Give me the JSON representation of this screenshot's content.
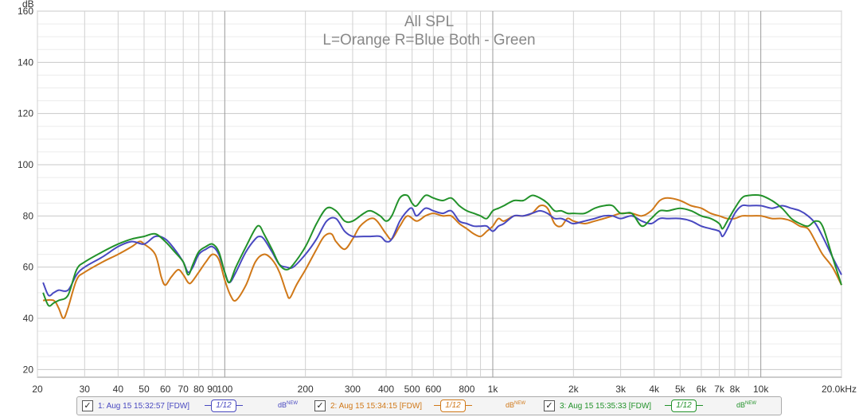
{
  "chart_data": {
    "type": "line",
    "title": "All SPL",
    "subtitle": "L=Orange  R=Blue  Both - Green",
    "ylabel": "dB",
    "xlabel": "",
    "x_scale": "log",
    "xlim": [
      20,
      20000
    ],
    "ylim": [
      17,
      160
    ],
    "grid": true,
    "yticks": [
      20,
      40,
      60,
      80,
      100,
      120,
      140,
      160
    ],
    "xtick_labels": [
      {
        "f": 20,
        "label": "20"
      },
      {
        "f": 30,
        "label": "30"
      },
      {
        "f": 40,
        "label": "40"
      },
      {
        "f": 50,
        "label": "50"
      },
      {
        "f": 60,
        "label": "60"
      },
      {
        "f": 70,
        "label": "70"
      },
      {
        "f": 80,
        "label": "80"
      },
      {
        "f": 90,
        "label": "90"
      },
      {
        "f": 100,
        "label": "100"
      },
      {
        "f": 200,
        "label": "200"
      },
      {
        "f": 300,
        "label": "300"
      },
      {
        "f": 400,
        "label": "400"
      },
      {
        "f": 500,
        "label": "500"
      },
      {
        "f": 600,
        "label": "600"
      },
      {
        "f": 800,
        "label": "800"
      },
      {
        "f": 1000,
        "label": "1k"
      },
      {
        "f": 2000,
        "label": "2k"
      },
      {
        "f": 3000,
        "label": "3k"
      },
      {
        "f": 4000,
        "label": "4k"
      },
      {
        "f": 5000,
        "label": "5k"
      },
      {
        "f": 6000,
        "label": "6k"
      },
      {
        "f": 7000,
        "label": "7k"
      },
      {
        "f": 8000,
        "label": "8k"
      },
      {
        "f": 10000,
        "label": "10k"
      },
      {
        "f": 20000,
        "label": "20.0kHz"
      }
    ],
    "series": [
      {
        "color": "#d07818",
        "points": [
          [
            21,
            47
          ],
          [
            23,
            47
          ],
          [
            24,
            44
          ],
          [
            25,
            40
          ],
          [
            26,
            44
          ],
          [
            28,
            55
          ],
          [
            30,
            58
          ],
          [
            35,
            62
          ],
          [
            40,
            65
          ],
          [
            45,
            68
          ],
          [
            48,
            70
          ],
          [
            50,
            69
          ],
          [
            55,
            65
          ],
          [
            58,
            56
          ],
          [
            60,
            53
          ],
          [
            63,
            56
          ],
          [
            67,
            59
          ],
          [
            70,
            57
          ],
          [
            73,
            54
          ],
          [
            75,
            54
          ],
          [
            80,
            58
          ],
          [
            85,
            62
          ],
          [
            90,
            65
          ],
          [
            95,
            63
          ],
          [
            100,
            55
          ],
          [
            105,
            49
          ],
          [
            110,
            47
          ],
          [
            120,
            53
          ],
          [
            130,
            62
          ],
          [
            140,
            65
          ],
          [
            150,
            63
          ],
          [
            160,
            58
          ],
          [
            170,
            50
          ],
          [
            175,
            48
          ],
          [
            185,
            53
          ],
          [
            200,
            59
          ],
          [
            220,
            67
          ],
          [
            235,
            72
          ],
          [
            250,
            73
          ],
          [
            260,
            70
          ],
          [
            280,
            67
          ],
          [
            300,
            71
          ],
          [
            320,
            76
          ],
          [
            350,
            79
          ],
          [
            370,
            78
          ],
          [
            400,
            73
          ],
          [
            420,
            71
          ],
          [
            450,
            76
          ],
          [
            480,
            80
          ],
          [
            520,
            78
          ],
          [
            560,
            80
          ],
          [
            600,
            81
          ],
          [
            650,
            80
          ],
          [
            700,
            80
          ],
          [
            750,
            77
          ],
          [
            800,
            75
          ],
          [
            850,
            73
          ],
          [
            900,
            72
          ],
          [
            950,
            74
          ],
          [
            1000,
            76
          ],
          [
            1050,
            79
          ],
          [
            1100,
            78
          ],
          [
            1200,
            80
          ],
          [
            1300,
            80
          ],
          [
            1400,
            81
          ],
          [
            1500,
            84
          ],
          [
            1600,
            83
          ],
          [
            1700,
            77
          ],
          [
            1800,
            76
          ],
          [
            1900,
            79
          ],
          [
            2000,
            78
          ],
          [
            2200,
            77
          ],
          [
            2400,
            78
          ],
          [
            2600,
            79
          ],
          [
            2800,
            80
          ],
          [
            3000,
            81
          ],
          [
            3300,
            81
          ],
          [
            3600,
            80
          ],
          [
            3900,
            82
          ],
          [
            4200,
            86
          ],
          [
            4500,
            87
          ],
          [
            5000,
            86
          ],
          [
            5500,
            84
          ],
          [
            6000,
            83
          ],
          [
            6500,
            81
          ],
          [
            7000,
            80
          ],
          [
            7500,
            79
          ],
          [
            8000,
            79
          ],
          [
            8500,
            80
          ],
          [
            9000,
            80
          ],
          [
            10000,
            80
          ],
          [
            11000,
            79
          ],
          [
            12000,
            79
          ],
          [
            13000,
            78
          ],
          [
            14000,
            76
          ],
          [
            15000,
            75
          ],
          [
            16000,
            70
          ],
          [
            17000,
            65
          ],
          [
            18500,
            60
          ],
          [
            20000,
            53
          ]
        ]
      },
      {
        "color": "#4848c0",
        "points": [
          [
            21,
            54
          ],
          [
            22,
            49
          ],
          [
            23,
            50
          ],
          [
            24,
            51
          ],
          [
            26,
            51
          ],
          [
            28,
            57
          ],
          [
            30,
            60
          ],
          [
            35,
            64
          ],
          [
            40,
            68
          ],
          [
            45,
            70
          ],
          [
            50,
            69
          ],
          [
            55,
            72
          ],
          [
            60,
            71
          ],
          [
            65,
            67
          ],
          [
            70,
            62
          ],
          [
            73,
            58
          ],
          [
            76,
            60
          ],
          [
            80,
            65
          ],
          [
            85,
            67
          ],
          [
            90,
            68
          ],
          [
            95,
            65
          ],
          [
            100,
            58
          ],
          [
            104,
            54
          ],
          [
            110,
            58
          ],
          [
            120,
            66
          ],
          [
            130,
            71
          ],
          [
            135,
            72
          ],
          [
            140,
            71
          ],
          [
            150,
            66
          ],
          [
            160,
            61
          ],
          [
            170,
            60
          ],
          [
            180,
            60
          ],
          [
            200,
            65
          ],
          [
            220,
            71
          ],
          [
            240,
            78
          ],
          [
            260,
            79
          ],
          [
            280,
            74
          ],
          [
            300,
            72
          ],
          [
            330,
            72
          ],
          [
            350,
            72
          ],
          [
            380,
            72
          ],
          [
            400,
            70
          ],
          [
            420,
            71
          ],
          [
            450,
            78
          ],
          [
            480,
            82
          ],
          [
            500,
            83
          ],
          [
            520,
            80
          ],
          [
            560,
            83
          ],
          [
            600,
            82
          ],
          [
            650,
            81
          ],
          [
            700,
            82
          ],
          [
            750,
            78
          ],
          [
            800,
            77
          ],
          [
            850,
            76
          ],
          [
            900,
            76
          ],
          [
            950,
            76
          ],
          [
            1000,
            74
          ],
          [
            1050,
            76
          ],
          [
            1100,
            77
          ],
          [
            1200,
            80
          ],
          [
            1300,
            80
          ],
          [
            1400,
            81
          ],
          [
            1500,
            82
          ],
          [
            1600,
            81
          ],
          [
            1700,
            79
          ],
          [
            1800,
            79
          ],
          [
            1900,
            78
          ],
          [
            2000,
            77
          ],
          [
            2200,
            78
          ],
          [
            2400,
            79
          ],
          [
            2600,
            80
          ],
          [
            2800,
            80
          ],
          [
            3000,
            79
          ],
          [
            3300,
            80
          ],
          [
            3600,
            78
          ],
          [
            3900,
            77
          ],
          [
            4200,
            79
          ],
          [
            4500,
            79
          ],
          [
            5000,
            79
          ],
          [
            5500,
            78
          ],
          [
            6000,
            76
          ],
          [
            6500,
            75
          ],
          [
            7000,
            74
          ],
          [
            7200,
            72
          ],
          [
            7500,
            75
          ],
          [
            8000,
            81
          ],
          [
            8500,
            84
          ],
          [
            9000,
            84
          ],
          [
            10000,
            84
          ],
          [
            11000,
            83
          ],
          [
            12000,
            84
          ],
          [
            13000,
            83
          ],
          [
            14000,
            82
          ],
          [
            15000,
            80
          ],
          [
            16000,
            77
          ],
          [
            17000,
            72
          ],
          [
            18500,
            64
          ],
          [
            20000,
            57
          ]
        ]
      },
      {
        "color": "#22922a",
        "points": [
          [
            21,
            50
          ],
          [
            22,
            45
          ],
          [
            23,
            46
          ],
          [
            24,
            47
          ],
          [
            26,
            49
          ],
          [
            28,
            59
          ],
          [
            30,
            62
          ],
          [
            35,
            66
          ],
          [
            40,
            69
          ],
          [
            45,
            71
          ],
          [
            50,
            72
          ],
          [
            55,
            73
          ],
          [
            60,
            70
          ],
          [
            65,
            66
          ],
          [
            70,
            62
          ],
          [
            73,
            57
          ],
          [
            76,
            61
          ],
          [
            80,
            66
          ],
          [
            85,
            68
          ],
          [
            90,
            69
          ],
          [
            95,
            66
          ],
          [
            100,
            58
          ],
          [
            104,
            54
          ],
          [
            110,
            60
          ],
          [
            120,
            68
          ],
          [
            130,
            75
          ],
          [
            135,
            76
          ],
          [
            140,
            73
          ],
          [
            150,
            67
          ],
          [
            160,
            61
          ],
          [
            170,
            59
          ],
          [
            180,
            61
          ],
          [
            200,
            68
          ],
          [
            220,
            77
          ],
          [
            240,
            83
          ],
          [
            260,
            82
          ],
          [
            280,
            78
          ],
          [
            300,
            78
          ],
          [
            330,
            81
          ],
          [
            350,
            82
          ],
          [
            380,
            80
          ],
          [
            400,
            78
          ],
          [
            420,
            80
          ],
          [
            450,
            87
          ],
          [
            480,
            88
          ],
          [
            500,
            85
          ],
          [
            520,
            84
          ],
          [
            560,
            88
          ],
          [
            600,
            87
          ],
          [
            650,
            86
          ],
          [
            700,
            87
          ],
          [
            750,
            84
          ],
          [
            800,
            82
          ],
          [
            850,
            81
          ],
          [
            900,
            80
          ],
          [
            950,
            79
          ],
          [
            1000,
            82
          ],
          [
            1050,
            83
          ],
          [
            1100,
            84
          ],
          [
            1200,
            86
          ],
          [
            1300,
            86
          ],
          [
            1400,
            88
          ],
          [
            1500,
            87
          ],
          [
            1600,
            85
          ],
          [
            1700,
            82
          ],
          [
            1800,
            82
          ],
          [
            1900,
            81
          ],
          [
            2000,
            81
          ],
          [
            2200,
            81
          ],
          [
            2400,
            83
          ],
          [
            2600,
            84
          ],
          [
            2800,
            84
          ],
          [
            3000,
            81
          ],
          [
            3300,
            81
          ],
          [
            3600,
            76
          ],
          [
            3900,
            79
          ],
          [
            4200,
            82
          ],
          [
            4500,
            82
          ],
          [
            5000,
            83
          ],
          [
            5500,
            82
          ],
          [
            6000,
            80
          ],
          [
            6500,
            79
          ],
          [
            7000,
            77
          ],
          [
            7200,
            75
          ],
          [
            7500,
            78
          ],
          [
            8000,
            83
          ],
          [
            8500,
            87
          ],
          [
            9000,
            88
          ],
          [
            10000,
            88
          ],
          [
            11000,
            86
          ],
          [
            12000,
            83
          ],
          [
            13000,
            79
          ],
          [
            14000,
            77
          ],
          [
            15000,
            76
          ],
          [
            16000,
            78
          ],
          [
            17000,
            76
          ],
          [
            18500,
            64
          ],
          [
            20000,
            53
          ]
        ]
      }
    ]
  },
  "legend": {
    "items": [
      {
        "label": "1: Aug 15 15:32:57 [FDW]",
        "smoothing": "1/12",
        "unit": "dB",
        "unit_sup": "NEW",
        "color": "#4848c0"
      },
      {
        "label": "2: Aug 15 15:34:15 [FDW]",
        "smoothing": "1/12",
        "unit": "dB",
        "unit_sup": "NEW",
        "color": "#d07818"
      },
      {
        "label": "3: Aug 15 15:35:33 [FDW]",
        "smoothing": "1/12",
        "unit": "dB",
        "unit_sup": "NEW",
        "color": "#22922a"
      }
    ]
  }
}
